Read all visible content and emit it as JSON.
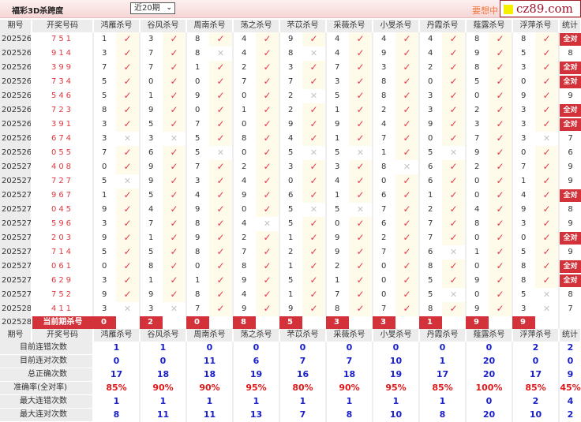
{
  "header": {
    "title": "福彩3D杀跨度",
    "period_select": "近20期",
    "slogan": "要想中",
    "logo_text": "cz89.com"
  },
  "colors": {
    "accent": "#d3323a",
    "check": "#e23a48",
    "cross": "#c4c4c4",
    "stat_blue": "#1a20c8",
    "percent_red": "#e01818"
  },
  "columns": {
    "issue": "期号",
    "draw": "开奖号码",
    "stat": "统计",
    "predictors": [
      "鸿雁杀号",
      "谷风杀号",
      "周南杀号",
      "荡之杀号",
      "芣苡杀号",
      "采薇杀号",
      "小旻杀号",
      "丹霞杀号",
      "薤露杀号",
      "浮萍杀号"
    ]
  },
  "icons": {
    "ok": "check-icon",
    "bad": "cross-icon",
    "ok_glyph": "✓",
    "bad_glyph": "✕"
  },
  "rows": [
    {
      "issue": "2025261",
      "draw": "751",
      "kills": [
        [
          1,
          1
        ],
        [
          3,
          1
        ],
        [
          8,
          1
        ],
        [
          4,
          1
        ],
        [
          9,
          1
        ],
        [
          4,
          1
        ],
        [
          4,
          1
        ],
        [
          4,
          1
        ],
        [
          8,
          1
        ],
        [
          8,
          1
        ]
      ],
      "stat": "全对"
    },
    {
      "issue": "2025262",
      "draw": "914",
      "kills": [
        [
          3,
          1
        ],
        [
          7,
          1
        ],
        [
          8,
          0
        ],
        [
          4,
          1
        ],
        [
          8,
          0
        ],
        [
          4,
          1
        ],
        [
          9,
          1
        ],
        [
          4,
          1
        ],
        [
          9,
          1
        ],
        [
          5,
          1
        ]
      ],
      "stat": "8"
    },
    {
      "issue": "2025263",
      "draw": "399",
      "kills": [
        [
          7,
          1
        ],
        [
          7,
          1
        ],
        [
          1,
          1
        ],
        [
          2,
          1
        ],
        [
          3,
          1
        ],
        [
          7,
          1
        ],
        [
          3,
          1
        ],
        [
          2,
          1
        ],
        [
          8,
          1
        ],
        [
          3,
          1
        ]
      ],
      "stat": "全对"
    },
    {
      "issue": "2025264",
      "draw": "734",
      "kills": [
        [
          5,
          1
        ],
        [
          0,
          1
        ],
        [
          0,
          1
        ],
        [
          7,
          1
        ],
        [
          7,
          1
        ],
        [
          3,
          1
        ],
        [
          8,
          1
        ],
        [
          0,
          1
        ],
        [
          5,
          1
        ],
        [
          0,
          1
        ]
      ],
      "stat": "全对"
    },
    {
      "issue": "2025265",
      "draw": "546",
      "kills": [
        [
          5,
          1
        ],
        [
          1,
          1
        ],
        [
          9,
          1
        ],
        [
          0,
          1
        ],
        [
          2,
          0
        ],
        [
          5,
          1
        ],
        [
          8,
          1
        ],
        [
          3,
          1
        ],
        [
          0,
          1
        ],
        [
          9,
          1
        ]
      ],
      "stat": "9"
    },
    {
      "issue": "2025266",
      "draw": "723",
      "kills": [
        [
          8,
          1
        ],
        [
          9,
          1
        ],
        [
          0,
          1
        ],
        [
          1,
          1
        ],
        [
          2,
          1
        ],
        [
          1,
          1
        ],
        [
          2,
          1
        ],
        [
          3,
          1
        ],
        [
          2,
          1
        ],
        [
          3,
          1
        ]
      ],
      "stat": "全对"
    },
    {
      "issue": "2025267",
      "draw": "391",
      "kills": [
        [
          3,
          1
        ],
        [
          5,
          1
        ],
        [
          7,
          1
        ],
        [
          0,
          1
        ],
        [
          9,
          1
        ],
        [
          9,
          1
        ],
        [
          4,
          1
        ],
        [
          9,
          1
        ],
        [
          3,
          1
        ],
        [
          3,
          1
        ]
      ],
      "stat": "全对"
    },
    {
      "issue": "2025268",
      "draw": "674",
      "kills": [
        [
          3,
          0
        ],
        [
          3,
          0
        ],
        [
          5,
          1
        ],
        [
          8,
          1
        ],
        [
          4,
          1
        ],
        [
          1,
          1
        ],
        [
          7,
          1
        ],
        [
          0,
          1
        ],
        [
          7,
          1
        ],
        [
          3,
          0
        ]
      ],
      "stat": "7"
    },
    {
      "issue": "2025269",
      "draw": "055",
      "kills": [
        [
          7,
          1
        ],
        [
          6,
          1
        ],
        [
          5,
          0
        ],
        [
          0,
          1
        ],
        [
          5,
          0
        ],
        [
          5,
          0
        ],
        [
          1,
          1
        ],
        [
          5,
          0
        ],
        [
          9,
          1
        ],
        [
          0,
          1
        ]
      ],
      "stat": "6"
    },
    {
      "issue": "2025270",
      "draw": "408",
      "kills": [
        [
          0,
          1
        ],
        [
          9,
          1
        ],
        [
          7,
          1
        ],
        [
          2,
          1
        ],
        [
          3,
          1
        ],
        [
          3,
          1
        ],
        [
          8,
          0
        ],
        [
          6,
          1
        ],
        [
          2,
          1
        ],
        [
          7,
          1
        ]
      ],
      "stat": "9"
    },
    {
      "issue": "2025271",
      "draw": "727",
      "kills": [
        [
          5,
          0
        ],
        [
          9,
          1
        ],
        [
          3,
          1
        ],
        [
          4,
          1
        ],
        [
          0,
          1
        ],
        [
          4,
          1
        ],
        [
          0,
          1
        ],
        [
          6,
          1
        ],
        [
          0,
          1
        ],
        [
          1,
          1
        ]
      ],
      "stat": "9"
    },
    {
      "issue": "2025272",
      "draw": "967",
      "kills": [
        [
          1,
          1
        ],
        [
          5,
          1
        ],
        [
          4,
          1
        ],
        [
          9,
          1
        ],
        [
          6,
          1
        ],
        [
          1,
          1
        ],
        [
          6,
          1
        ],
        [
          1,
          1
        ],
        [
          0,
          1
        ],
        [
          4,
          1
        ]
      ],
      "stat": "全对"
    },
    {
      "issue": "2025273",
      "draw": "045",
      "kills": [
        [
          9,
          1
        ],
        [
          4,
          1
        ],
        [
          9,
          1
        ],
        [
          0,
          1
        ],
        [
          5,
          0
        ],
        [
          5,
          0
        ],
        [
          7,
          1
        ],
        [
          2,
          1
        ],
        [
          4,
          1
        ],
        [
          9,
          1
        ]
      ],
      "stat": "8"
    },
    {
      "issue": "2025274",
      "draw": "596",
      "kills": [
        [
          3,
          1
        ],
        [
          7,
          1
        ],
        [
          8,
          1
        ],
        [
          4,
          0
        ],
        [
          5,
          1
        ],
        [
          0,
          1
        ],
        [
          6,
          1
        ],
        [
          7,
          1
        ],
        [
          8,
          1
        ],
        [
          3,
          1
        ]
      ],
      "stat": "9"
    },
    {
      "issue": "2025275",
      "draw": "203",
      "kills": [
        [
          9,
          1
        ],
        [
          1,
          1
        ],
        [
          9,
          1
        ],
        [
          2,
          1
        ],
        [
          1,
          1
        ],
        [
          9,
          1
        ],
        [
          2,
          1
        ],
        [
          7,
          1
        ],
        [
          0,
          1
        ],
        [
          0,
          1
        ]
      ],
      "stat": "全对"
    },
    {
      "issue": "2025276",
      "draw": "714",
      "kills": [
        [
          5,
          1
        ],
        [
          5,
          1
        ],
        [
          8,
          1
        ],
        [
          7,
          1
        ],
        [
          2,
          1
        ],
        [
          9,
          1
        ],
        [
          7,
          1
        ],
        [
          6,
          0
        ],
        [
          1,
          1
        ],
        [
          5,
          1
        ]
      ],
      "stat": "9"
    },
    {
      "issue": "2025277",
      "draw": "061",
      "kills": [
        [
          0,
          1
        ],
        [
          8,
          1
        ],
        [
          0,
          1
        ],
        [
          8,
          1
        ],
        [
          1,
          1
        ],
        [
          2,
          1
        ],
        [
          0,
          1
        ],
        [
          8,
          1
        ],
        [
          0,
          1
        ],
        [
          8,
          1
        ]
      ],
      "stat": "全对"
    },
    {
      "issue": "2025278",
      "draw": "629",
      "kills": [
        [
          3,
          1
        ],
        [
          1,
          1
        ],
        [
          1,
          1
        ],
        [
          9,
          1
        ],
        [
          5,
          1
        ],
        [
          1,
          1
        ],
        [
          0,
          1
        ],
        [
          5,
          1
        ],
        [
          9,
          1
        ],
        [
          8,
          1
        ]
      ],
      "stat": "全对"
    },
    {
      "issue": "2025279",
      "draw": "752",
      "kills": [
        [
          9,
          1
        ],
        [
          9,
          1
        ],
        [
          8,
          1
        ],
        [
          4,
          1
        ],
        [
          1,
          1
        ],
        [
          7,
          1
        ],
        [
          0,
          1
        ],
        [
          5,
          0
        ],
        [
          0,
          1
        ],
        [
          5,
          0
        ]
      ],
      "stat": "8"
    },
    {
      "issue": "2025280",
      "draw": "411",
      "kills": [
        [
          3,
          0
        ],
        [
          3,
          0
        ],
        [
          7,
          1
        ],
        [
          9,
          1
        ],
        [
          9,
          1
        ],
        [
          8,
          1
        ],
        [
          7,
          1
        ],
        [
          8,
          1
        ],
        [
          9,
          1
        ],
        [
          3,
          0
        ]
      ],
      "stat": "7"
    }
  ],
  "current": {
    "issue": "2025281",
    "label": "当前期杀号",
    "kills": [
      "0",
      "2",
      "0",
      "8",
      "5",
      "3",
      "3",
      "1",
      "9",
      "9"
    ]
  },
  "stats": [
    {
      "label": "目前连错次数",
      "values": [
        "1",
        "1",
        "0",
        "0",
        "0",
        "0",
        "0",
        "0",
        "0",
        "2",
        "2"
      ]
    },
    {
      "label": "目前连对次数",
      "values": [
        "0",
        "0",
        "11",
        "6",
        "7",
        "7",
        "10",
        "1",
        "20",
        "0",
        "0"
      ]
    },
    {
      "label": "总正确次数",
      "values": [
        "17",
        "18",
        "18",
        "19",
        "16",
        "18",
        "19",
        "17",
        "20",
        "17",
        "9"
      ]
    },
    {
      "label": "准确率(全对率)",
      "values": [
        "85%",
        "90%",
        "90%",
        "95%",
        "80%",
        "90%",
        "95%",
        "85%",
        "100%",
        "85%",
        "45%"
      ],
      "percent": true
    },
    {
      "label": "最大连错次数",
      "values": [
        "1",
        "1",
        "1",
        "1",
        "1",
        "1",
        "1",
        "1",
        "0",
        "2",
        "4"
      ]
    },
    {
      "label": "最大连对次数",
      "values": [
        "8",
        "11",
        "11",
        "13",
        "7",
        "8",
        "10",
        "8",
        "20",
        "10",
        "2"
      ]
    }
  ]
}
